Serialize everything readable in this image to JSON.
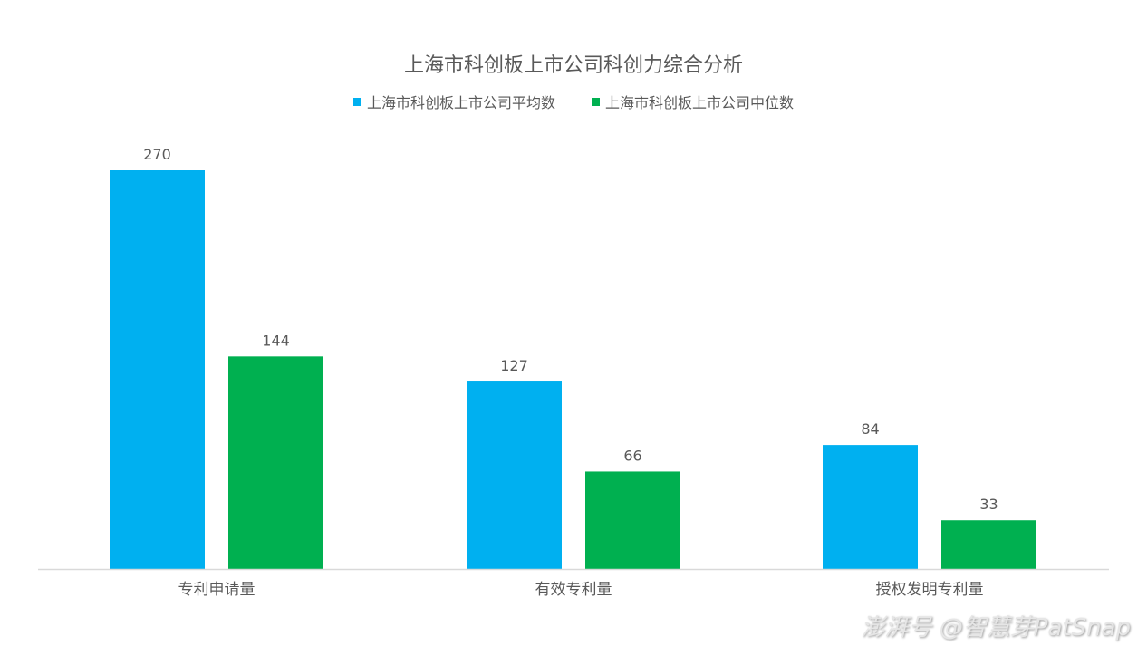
{
  "chart_data": {
    "type": "bar",
    "title": "上海市科创板上市公司科创力综合分析",
    "categories": [
      "专利申请量",
      "有效专利量",
      "授权发明专利量"
    ],
    "series": [
      {
        "name": "上海市科创板上市公司平均数",
        "color": "#00B0F0",
        "values": [
          270,
          127,
          84
        ]
      },
      {
        "name": "上海市科创板上市公司中位数",
        "color": "#00B050",
        "values": [
          144,
          66,
          33
        ]
      }
    ],
    "xlabel": "",
    "ylabel": "",
    "ylim": [
      0,
      270
    ],
    "grid": false,
    "legend": "top"
  },
  "watermark": "澎湃号 @智慧芽PatSnap"
}
